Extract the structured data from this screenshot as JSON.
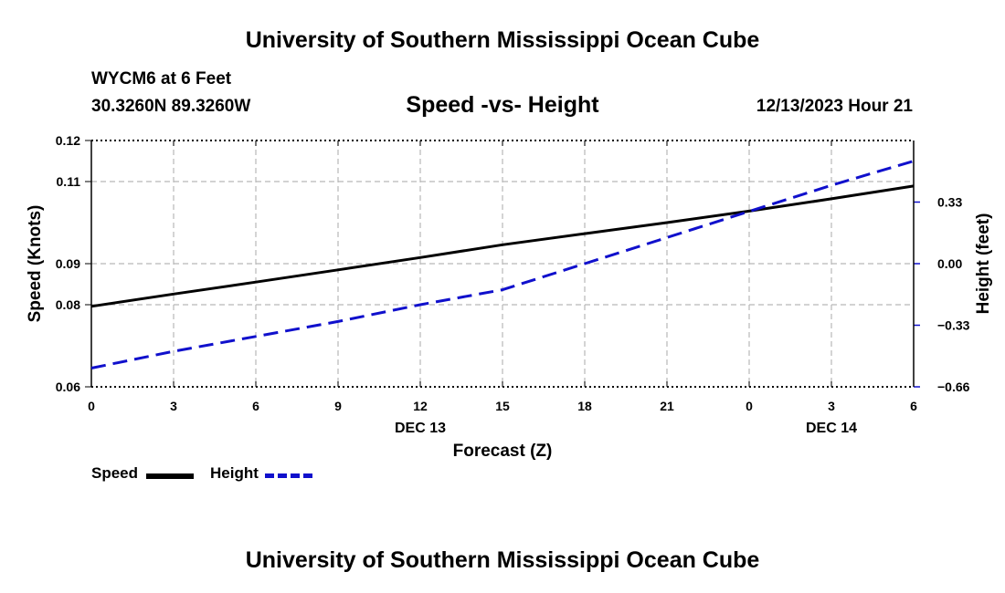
{
  "header": {
    "title": "University of Southern Mississippi Ocean Cube",
    "station": "WYCM6 at 6 Feet",
    "coords": "30.3260N  89.3260W",
    "chart_title": "Speed -vs- Height",
    "datetime": "12/13/2023 Hour 21"
  },
  "footer": {
    "title": "University of Southern Mississippi Ocean Cube"
  },
  "legend": {
    "speed_label": "Speed",
    "height_label": "Height"
  },
  "colors": {
    "speed": "#000000",
    "height": "#1010cc",
    "grid": "#b8b8b8"
  },
  "chart_data": {
    "type": "line",
    "title": "Speed -vs- Height",
    "xlabel": "Forecast (Z)",
    "ylabel": "Speed (Knots)",
    "y2label": "Height (feet)",
    "x_hours": [
      0,
      3,
      6,
      9,
      12,
      15,
      18,
      21,
      24,
      27,
      30
    ],
    "x_tick_labels": [
      "0",
      "3",
      "6",
      "9",
      "12",
      "15",
      "18",
      "21",
      "0",
      "3",
      "6"
    ],
    "date_labels": [
      {
        "hour": 12,
        "label": "DEC 13"
      },
      {
        "hour": 27,
        "label": "DEC 14"
      }
    ],
    "xlim": [
      0,
      30
    ],
    "ylim": [
      0.06,
      0.12
    ],
    "y_ticks": [
      0.06,
      0.08,
      0.09,
      0.11,
      0.12
    ],
    "y_tick_labels": [
      "0.06",
      "0.08",
      "0.09",
      "0.11",
      "0.12"
    ],
    "y2lim": [
      -0.66,
      0.66
    ],
    "y2_ticks": [
      -0.66,
      -0.33,
      0.0,
      0.33
    ],
    "y2_tick_labels": [
      "−0.66",
      "−0.33",
      "0.00",
      "0.33"
    ],
    "series": [
      {
        "name": "Speed",
        "axis": "left",
        "style": "solid",
        "x": [
          0,
          3,
          6,
          9,
          12,
          15,
          18,
          21,
          24,
          27,
          30
        ],
        "values": [
          0.0796,
          0.0826,
          0.0855,
          0.0885,
          0.0915,
          0.0946,
          0.0973,
          0.1,
          0.1028,
          0.1058,
          0.1089
        ]
      },
      {
        "name": "Height",
        "axis": "right",
        "style": "dashed",
        "x": [
          0,
          3,
          6,
          9,
          12,
          15,
          18,
          21,
          24,
          27,
          30
        ],
        "values": [
          -0.56,
          -0.47,
          -0.39,
          -0.31,
          -0.22,
          -0.14,
          0.0,
          0.14,
          0.28,
          0.42,
          0.55
        ]
      }
    ]
  }
}
